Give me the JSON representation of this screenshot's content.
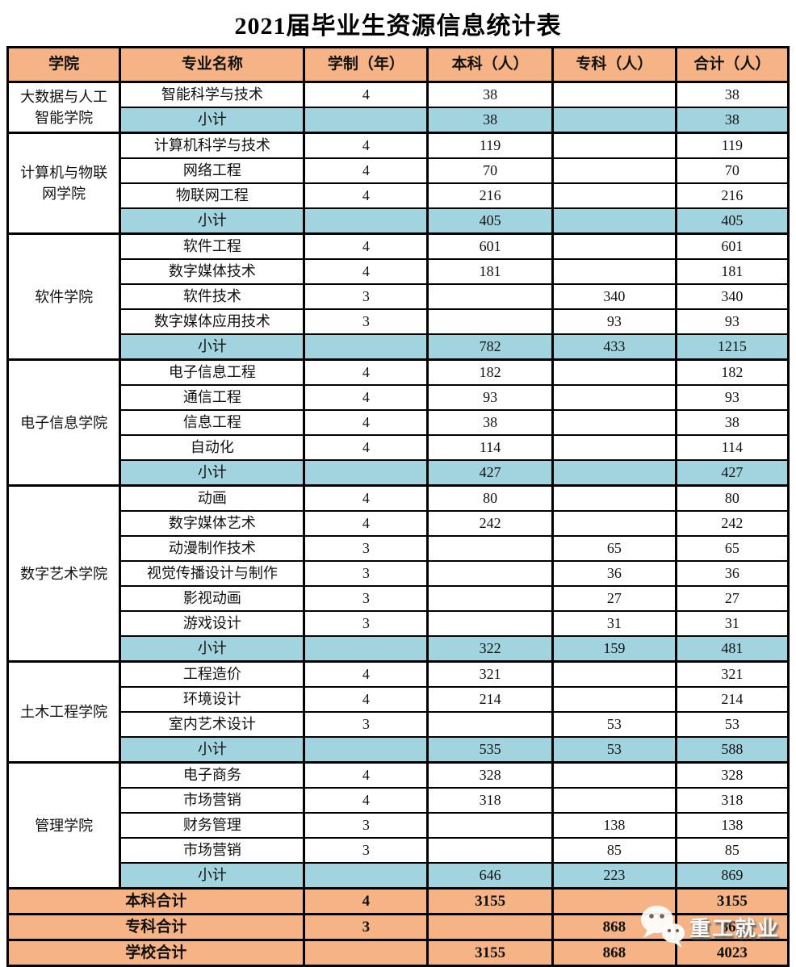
{
  "title": "2021届毕业生资源信息统计表",
  "colors": {
    "header_bg": "#F6B385",
    "subtotal_bg": "#A2D4E0",
    "summary_bg": "#F6B385",
    "border": "#000000"
  },
  "table": {
    "headers": [
      "学院",
      "专业名称",
      "学制（年）",
      "本科（人）",
      "专科（人）",
      "合计（人）"
    ],
    "subtotal_label": "小计",
    "sections": [
      {
        "college": "大数据与人工智能学院",
        "majors": [
          {
            "name": "智能科学与技术",
            "years": "4",
            "benke": "38",
            "zhuanke": "",
            "total": "38"
          }
        ],
        "subtotal": {
          "years": "",
          "benke": "38",
          "zhuanke": "",
          "total": "38"
        }
      },
      {
        "college": "计算机与物联网学院",
        "majors": [
          {
            "name": "计算机科学与技术",
            "years": "4",
            "benke": "119",
            "zhuanke": "",
            "total": "119"
          },
          {
            "name": "网络工程",
            "years": "4",
            "benke": "70",
            "zhuanke": "",
            "total": "70"
          },
          {
            "name": "物联网工程",
            "years": "4",
            "benke": "216",
            "zhuanke": "",
            "total": "216"
          }
        ],
        "subtotal": {
          "years": "",
          "benke": "405",
          "zhuanke": "",
          "total": "405"
        }
      },
      {
        "college": "软件学院",
        "majors": [
          {
            "name": "软件工程",
            "years": "4",
            "benke": "601",
            "zhuanke": "",
            "total": "601"
          },
          {
            "name": "数字媒体技术",
            "years": "4",
            "benke": "181",
            "zhuanke": "",
            "total": "181"
          },
          {
            "name": "软件技术",
            "years": "3",
            "benke": "",
            "zhuanke": "340",
            "total": "340"
          },
          {
            "name": "数字媒体应用技术",
            "years": "3",
            "benke": "",
            "zhuanke": "93",
            "total": "93"
          }
        ],
        "subtotal": {
          "years": "",
          "benke": "782",
          "zhuanke": "433",
          "total": "1215"
        }
      },
      {
        "college": "电子信息学院",
        "majors": [
          {
            "name": "电子信息工程",
            "years": "4",
            "benke": "182",
            "zhuanke": "",
            "total": "182"
          },
          {
            "name": "通信工程",
            "years": "4",
            "benke": "93",
            "zhuanke": "",
            "total": "93"
          },
          {
            "name": "信息工程",
            "years": "4",
            "benke": "38",
            "zhuanke": "",
            "total": "38"
          },
          {
            "name": "自动化",
            "years": "4",
            "benke": "114",
            "zhuanke": "",
            "total": "114"
          }
        ],
        "subtotal": {
          "years": "",
          "benke": "427",
          "zhuanke": "",
          "total": "427"
        }
      },
      {
        "college": "数字艺术学院",
        "majors": [
          {
            "name": "动画",
            "years": "4",
            "benke": "80",
            "zhuanke": "",
            "total": "80"
          },
          {
            "name": "数字媒体艺术",
            "years": "4",
            "benke": "242",
            "zhuanke": "",
            "total": "242"
          },
          {
            "name": "动漫制作技术",
            "years": "3",
            "benke": "",
            "zhuanke": "65",
            "total": "65"
          },
          {
            "name": "视觉传播设计与制作",
            "years": "3",
            "benke": "",
            "zhuanke": "36",
            "total": "36"
          },
          {
            "name": "影视动画",
            "years": "3",
            "benke": "",
            "zhuanke": "27",
            "total": "27"
          },
          {
            "name": "游戏设计",
            "years": "3",
            "benke": "",
            "zhuanke": "31",
            "total": "31"
          }
        ],
        "subtotal": {
          "years": "",
          "benke": "322",
          "zhuanke": "159",
          "total": "481"
        }
      },
      {
        "college": "土木工程学院",
        "majors": [
          {
            "name": "工程造价",
            "years": "4",
            "benke": "321",
            "zhuanke": "",
            "total": "321"
          },
          {
            "name": "环境设计",
            "years": "4",
            "benke": "214",
            "zhuanke": "",
            "total": "214"
          },
          {
            "name": "室内艺术设计",
            "years": "3",
            "benke": "",
            "zhuanke": "53",
            "total": "53"
          }
        ],
        "subtotal": {
          "years": "",
          "benke": "535",
          "zhuanke": "53",
          "total": "588"
        }
      },
      {
        "college": "管理学院",
        "majors": [
          {
            "name": "电子商务",
            "years": "4",
            "benke": "328",
            "zhuanke": "",
            "total": "328"
          },
          {
            "name": "市场营销",
            "years": "4",
            "benke": "318",
            "zhuanke": "",
            "total": "318"
          },
          {
            "name": "财务管理",
            "years": "3",
            "benke": "",
            "zhuanke": "138",
            "total": "138"
          },
          {
            "name": "市场营销",
            "years": "3",
            "benke": "",
            "zhuanke": "85",
            "total": "85"
          }
        ],
        "subtotal": {
          "years": "",
          "benke": "646",
          "zhuanke": "223",
          "total": "869"
        }
      }
    ],
    "summary": [
      {
        "label": "本科合计",
        "years": "4",
        "benke": "3155",
        "zhuanke": "",
        "total": "3155"
      },
      {
        "label": "专科合计",
        "years": "3",
        "benke": "",
        "zhuanke": "868",
        "total": "868"
      },
      {
        "label": "学校合计",
        "years": "",
        "benke": "3155",
        "zhuanke": "868",
        "total": "4023"
      }
    ]
  },
  "watermark": {
    "icon": "wechat-icon",
    "text": "重工就业"
  }
}
